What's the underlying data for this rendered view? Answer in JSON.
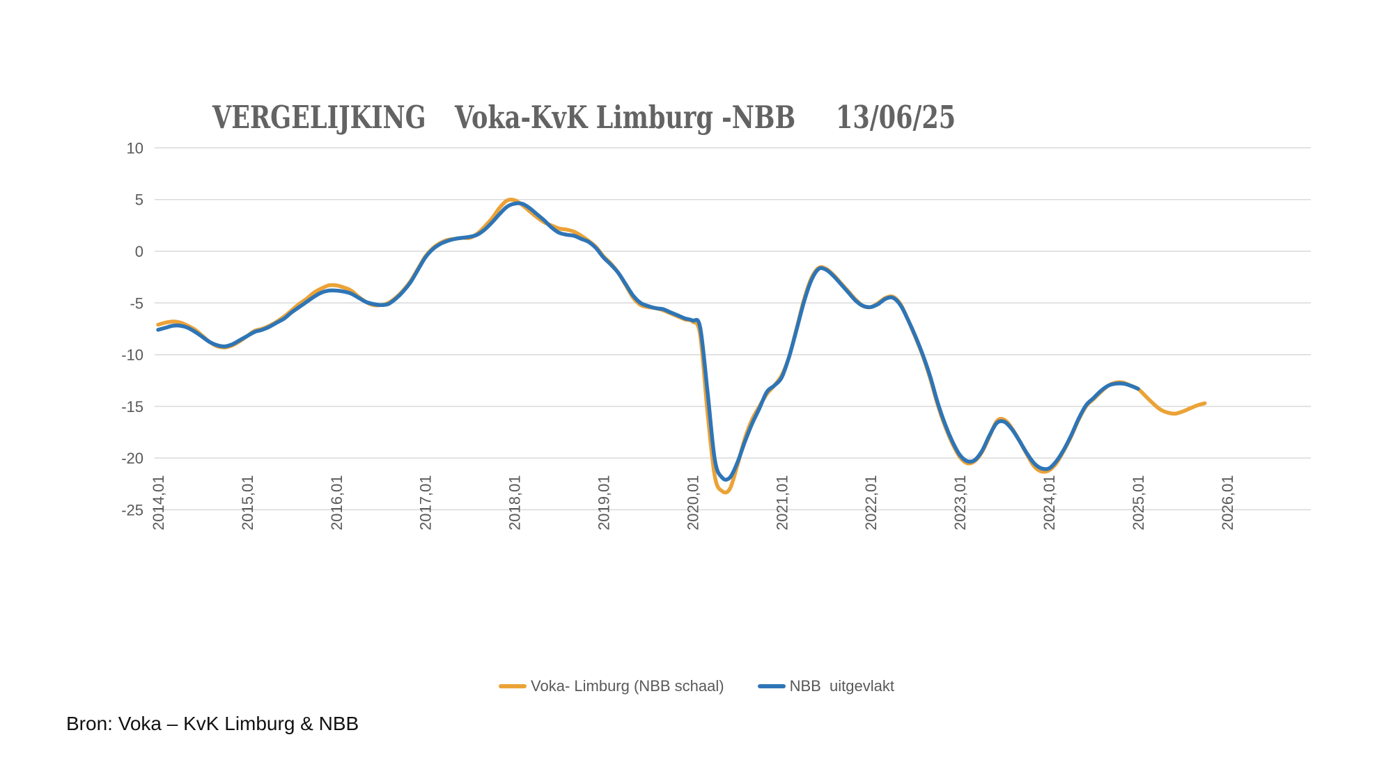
{
  "title": {
    "part1": "VERGELIJKING",
    "part2": "Voka-KvK Limburg -NBB",
    "part3": "13/06/25"
  },
  "source_text": "Bron: Voka – KvK Limburg & NBB",
  "colors": {
    "title_gray": "#636363",
    "axis_label_gray": "#595959",
    "gridline_gray": "#D9D9D9",
    "voka_orange": "#EBA237",
    "nbb_blue": "#2E75B6"
  },
  "legend": {
    "items": [
      {
        "label": "Voka- Limburg (NBB schaal)",
        "color": "#EBA237"
      },
      {
        "label": "NBB  uitgevlakt",
        "color": "#2E75B6"
      }
    ]
  },
  "chart_data": {
    "type": "line",
    "title": "VERGELIJKING Voka-KvK Limburg -NBB 13/06/25",
    "xlabel": "",
    "ylabel": "",
    "x_start": "2014,01",
    "x_step_months": 1,
    "x_tick_labels": [
      "2014,01",
      "2015,01",
      "2016,01",
      "2017,01",
      "2018,01",
      "2019,01",
      "2020,01",
      "2021,01",
      "2022,01",
      "2023,01",
      "2024,01",
      "2025,01",
      "2026,01"
    ],
    "y_tick_labels": [
      "10",
      "5",
      "0",
      "-5",
      "-10",
      "-15",
      "-20",
      "-25"
    ],
    "y_ticks": [
      10,
      5,
      0,
      -5,
      -10,
      -15,
      -20,
      -25
    ],
    "ylim": [
      -25,
      10
    ],
    "grid": true,
    "legend_position": "bottom",
    "series": [
      {
        "name": "Voka- Limburg (NBB schaal)",
        "color": "#EBA237",
        "start": "2014,01",
        "end": "2025,10",
        "values": [
          -7.1,
          -6.9,
          -6.8,
          -6.9,
          -7.2,
          -7.6,
          -8.2,
          -8.8,
          -9.2,
          -9.3,
          -9.1,
          -8.7,
          -8.2,
          -7.7,
          -7.5,
          -7.2,
          -6.8,
          -6.3,
          -5.7,
          -5.1,
          -4.6,
          -4.0,
          -3.6,
          -3.3,
          -3.3,
          -3.5,
          -3.8,
          -4.4,
          -4.9,
          -5.2,
          -5.2,
          -5.0,
          -4.5,
          -3.8,
          -2.9,
          -1.7,
          -0.5,
          0.3,
          0.8,
          1.1,
          1.2,
          1.3,
          1.3,
          1.7,
          2.4,
          3.2,
          4.2,
          4.9,
          4.95,
          4.5,
          3.9,
          3.3,
          2.8,
          2.5,
          2.2,
          2.1,
          1.9,
          1.5,
          1.0,
          0.4,
          -0.5,
          -1.2,
          -2.1,
          -3.3,
          -4.5,
          -5.2,
          -5.4,
          -5.5,
          -5.7,
          -6.0,
          -6.3,
          -6.6,
          -6.8,
          -8.0,
          -15.5,
          -21.8,
          -23.2,
          -23.0,
          -20.8,
          -18.2,
          -16.3,
          -15.0,
          -13.8,
          -13.0,
          -12.0,
          -10.2,
          -7.5,
          -4.7,
          -2.6,
          -1.6,
          -1.7,
          -2.3,
          -3.1,
          -3.9,
          -4.7,
          -5.3,
          -5.4,
          -5.0,
          -4.5,
          -4.4,
          -5.1,
          -6.6,
          -8.3,
          -10.1,
          -12.3,
          -14.8,
          -16.9,
          -18.6,
          -19.9,
          -20.5,
          -20.3,
          -19.4,
          -17.9,
          -16.4,
          -16.3,
          -17.1,
          -18.3,
          -19.6,
          -20.8,
          -21.3,
          -21.2,
          -20.5,
          -19.3,
          -17.9,
          -16.3,
          -15.0,
          -14.3,
          -13.6,
          -13.0,
          -12.7,
          -12.7,
          -13.0,
          -13.3,
          -14.0,
          -14.7,
          -15.3,
          -15.6,
          -15.7,
          -15.5,
          -15.2,
          -14.9,
          -14.7
        ]
      },
      {
        "name": "NBB  uitgevlakt",
        "color": "#2E75B6",
        "start": "2014,01",
        "end": "2025,01",
        "values": [
          -7.6,
          -7.4,
          -7.2,
          -7.2,
          -7.4,
          -7.8,
          -8.3,
          -8.8,
          -9.1,
          -9.2,
          -9.0,
          -8.6,
          -8.2,
          -7.8,
          -7.6,
          -7.3,
          -6.9,
          -6.5,
          -5.9,
          -5.4,
          -4.9,
          -4.4,
          -4.0,
          -3.8,
          -3.8,
          -3.9,
          -4.1,
          -4.5,
          -4.9,
          -5.1,
          -5.2,
          -5.1,
          -4.6,
          -3.9,
          -3.0,
          -1.8,
          -0.6,
          0.2,
          0.7,
          1.0,
          1.2,
          1.3,
          1.4,
          1.6,
          2.1,
          2.8,
          3.6,
          4.3,
          4.6,
          4.6,
          4.2,
          3.6,
          3.0,
          2.3,
          1.8,
          1.6,
          1.5,
          1.2,
          0.9,
          0.3,
          -0.6,
          -1.3,
          -2.1,
          -3.2,
          -4.3,
          -5.0,
          -5.3,
          -5.5,
          -5.6,
          -5.9,
          -6.2,
          -6.5,
          -6.7,
          -7.3,
          -13.5,
          -20.2,
          -21.9,
          -21.9,
          -20.5,
          -18.5,
          -16.7,
          -15.2,
          -13.6,
          -13.0,
          -12.2,
          -10.2,
          -7.6,
          -4.9,
          -2.8,
          -1.7,
          -1.8,
          -2.4,
          -3.2,
          -4.0,
          -4.8,
          -5.3,
          -5.4,
          -5.1,
          -4.6,
          -4.5,
          -5.2,
          -6.6,
          -8.2,
          -10.0,
          -12.1,
          -14.6,
          -16.7,
          -18.4,
          -19.7,
          -20.3,
          -20.2,
          -19.3,
          -17.8,
          -16.6,
          -16.5,
          -17.2,
          -18.3,
          -19.5,
          -20.5,
          -21.0,
          -21.0,
          -20.3,
          -19.2,
          -17.8,
          -16.2,
          -14.9,
          -14.2,
          -13.5,
          -13.0,
          -12.8,
          -12.8,
          -13.0,
          -13.3
        ]
      }
    ]
  }
}
